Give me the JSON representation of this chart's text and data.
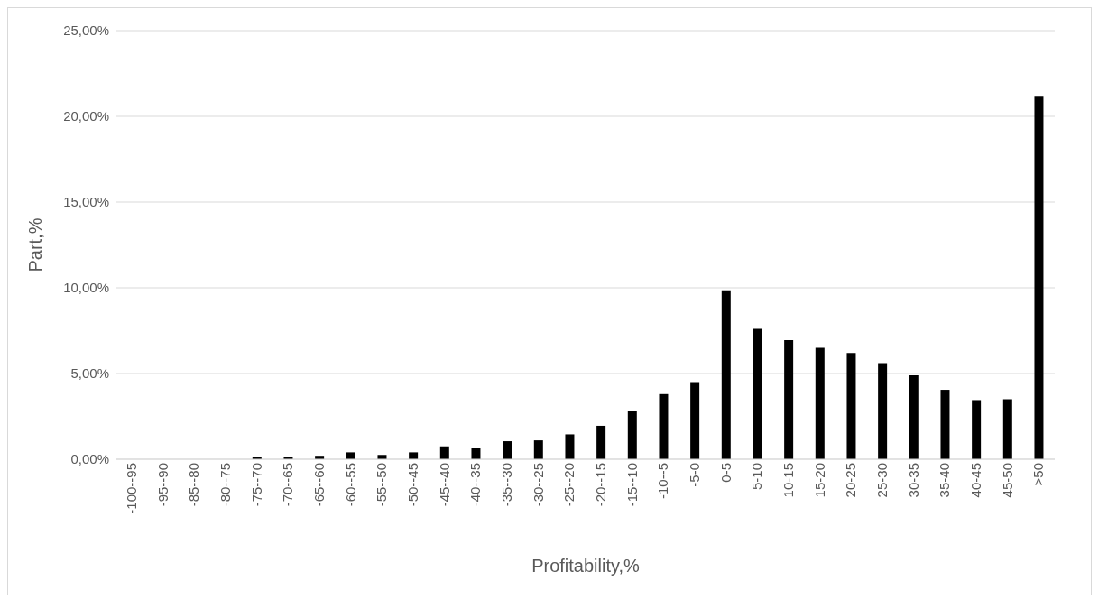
{
  "chart_data": {
    "type": "bar",
    "xlabel": "Profitability,%",
    "ylabel": "Part,%",
    "categories": [
      "-100--95",
      "-95--90",
      "-85--80",
      "-80--75",
      "-75--70",
      "-70--65",
      "-65--60",
      "-60--55",
      "-55--50",
      "-50--45",
      "-45--40",
      "-40--35",
      "-35--30",
      "-30--25",
      "-25--20",
      "-20--15",
      "-15--10",
      "-10--5",
      "-5-0",
      "0-5",
      "5-10",
      "10-15",
      "15-20",
      "20-25",
      "25-30",
      "30-35",
      "35-40",
      "40-45",
      "45-50",
      ">50"
    ],
    "values": [
      null,
      null,
      null,
      null,
      0.15,
      0.15,
      0.2,
      0.4,
      0.25,
      0.4,
      0.75,
      0.65,
      1.05,
      1.1,
      1.45,
      1.95,
      2.8,
      3.8,
      4.5,
      9.85,
      7.6,
      6.95,
      6.5,
      6.2,
      5.6,
      4.9,
      4.05,
      3.45,
      3.5,
      21.2
    ],
    "color": "#000000",
    "ylim": [
      0,
      25
    ],
    "yticks": [
      {
        "value": 0,
        "label": "0,00%"
      },
      {
        "value": 5,
        "label": "5,00%"
      },
      {
        "value": 10,
        "label": "10,00%"
      },
      {
        "value": 15,
        "label": "15,00%"
      },
      {
        "value": 20,
        "label": "20,00%"
      },
      {
        "value": 25,
        "label": "25,00%"
      }
    ],
    "grid": "y"
  }
}
